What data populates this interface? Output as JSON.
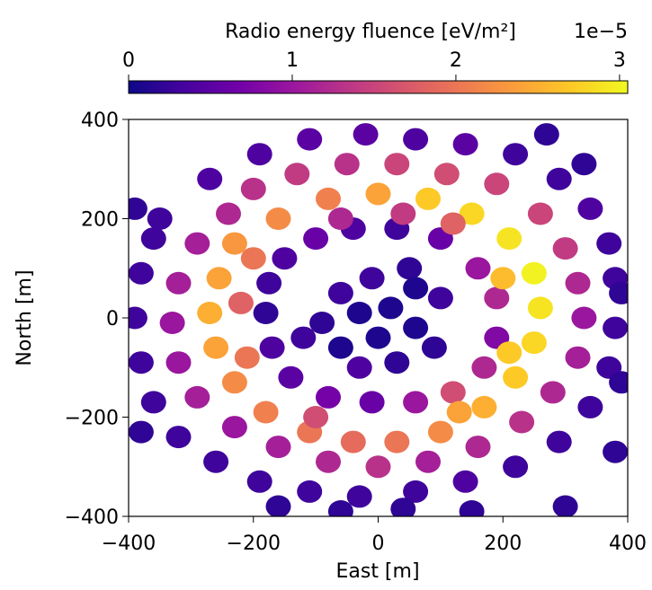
{
  "chart_data": {
    "type": "scatter",
    "title": "",
    "xlabel": "East [m]",
    "ylabel": "North [m]",
    "xlim": [
      -400,
      400
    ],
    "ylim": [
      -400,
      400
    ],
    "xticks": [
      -400,
      -200,
      0,
      200,
      400
    ],
    "yticks": [
      -400,
      -200,
      0,
      200,
      400
    ],
    "xtick_labels": [
      "−400",
      "−200",
      "0",
      "200",
      "400"
    ],
    "ytick_labels": [
      "−400",
      "−200",
      "0",
      "200",
      "400"
    ],
    "grid": false,
    "colormap": "plasma",
    "colorbar": {
      "label": "Radio energy fluence [eV/m²]",
      "offset_text": "1e−5",
      "placement": "top",
      "range": [
        0,
        3.05
      ],
      "ticks": [
        0,
        1,
        2,
        3
      ],
      "tick_labels": [
        "0",
        "1",
        "2",
        "3"
      ],
      "stops": [
        "#0d0887",
        "#46039f",
        "#7201a8",
        "#9c179e",
        "#bd3786",
        "#d8576b",
        "#ed7953",
        "#fb9f3a",
        "#fdca26",
        "#f0f921"
      ]
    },
    "points": [
      {
        "x": -10,
        "y": 80,
        "v": 0.3
      },
      {
        "x": 50,
        "y": 100,
        "v": 0.2
      },
      {
        "x": -60,
        "y": 50,
        "v": 0.3
      },
      {
        "x": -90,
        "y": -10,
        "v": 0.2
      },
      {
        "x": -60,
        "y": -60,
        "v": 0.1
      },
      {
        "x": 0,
        "y": -40,
        "v": 0.1
      },
      {
        "x": 20,
        "y": 20,
        "v": 0.1
      },
      {
        "x": 60,
        "y": -20,
        "v": 0.1
      },
      {
        "x": 60,
        "y": 60,
        "v": 0.1
      },
      {
        "x": 100,
        "y": 40,
        "v": 0.3
      },
      {
        "x": 90,
        "y": -60,
        "v": 0.2
      },
      {
        "x": 30,
        "y": -90,
        "v": 0.2
      },
      {
        "x": -30,
        "y": -100,
        "v": 0.4
      },
      {
        "x": -30,
        "y": 10,
        "v": 0.1
      },
      {
        "x": -150,
        "y": 120,
        "v": 0.4
      },
      {
        "x": -100,
        "y": 160,
        "v": 0.6
      },
      {
        "x": -40,
        "y": 180,
        "v": 0.4
      },
      {
        "x": 30,
        "y": 180,
        "v": 0.3
      },
      {
        "x": 100,
        "y": 160,
        "v": 0.6
      },
      {
        "x": 160,
        "y": 100,
        "v": 1.0
      },
      {
        "x": 190,
        "y": 40,
        "v": 1.2
      },
      {
        "x": 190,
        "y": -40,
        "v": 0.8
      },
      {
        "x": 170,
        "y": -100,
        "v": 1.2
      },
      {
        "x": 120,
        "y": -150,
        "v": 1.6
      },
      {
        "x": 60,
        "y": -170,
        "v": 1.0
      },
      {
        "x": -10,
        "y": -170,
        "v": 0.6
      },
      {
        "x": -80,
        "y": -160,
        "v": 0.7
      },
      {
        "x": -140,
        "y": -120,
        "v": 0.5
      },
      {
        "x": -170,
        "y": -60,
        "v": 0.4
      },
      {
        "x": -180,
        "y": 10,
        "v": 0.2
      },
      {
        "x": -175,
        "y": 70,
        "v": 0.3
      },
      {
        "x": -120,
        "y": -40,
        "v": 0.3
      },
      {
        "x": -230,
        "y": 150,
        "v": 2.3
      },
      {
        "x": -160,
        "y": 200,
        "v": 2.2
      },
      {
        "x": -80,
        "y": 240,
        "v": 2.1
      },
      {
        "x": 0,
        "y": 250,
        "v": 2.4
      },
      {
        "x": 80,
        "y": 240,
        "v": 2.7
      },
      {
        "x": 150,
        "y": 210,
        "v": 2.8
      },
      {
        "x": 210,
        "y": 160,
        "v": 2.9
      },
      {
        "x": 250,
        "y": 90,
        "v": 3.0
      },
      {
        "x": 260,
        "y": 20,
        "v": 2.9
      },
      {
        "x": 250,
        "y": -50,
        "v": 2.8
      },
      {
        "x": 220,
        "y": -120,
        "v": 2.7
      },
      {
        "x": 170,
        "y": -180,
        "v": 2.5
      },
      {
        "x": 100,
        "y": -230,
        "v": 2.2
      },
      {
        "x": 30,
        "y": -250,
        "v": 2.0
      },
      {
        "x": -40,
        "y": -250,
        "v": 1.9
      },
      {
        "x": -110,
        "y": -230,
        "v": 2.0
      },
      {
        "x": -180,
        "y": -190,
        "v": 2.1
      },
      {
        "x": -230,
        "y": -130,
        "v": 2.2
      },
      {
        "x": -260,
        "y": -60,
        "v": 2.4
      },
      {
        "x": -270,
        "y": 10,
        "v": 2.5
      },
      {
        "x": -255,
        "y": 80,
        "v": 2.4
      },
      {
        "x": -200,
        "y": 120,
        "v": 2.0
      },
      {
        "x": -60,
        "y": 200,
        "v": 1.2
      },
      {
        "x": 40,
        "y": 210,
        "v": 1.4
      },
      {
        "x": 120,
        "y": 190,
        "v": 1.8
      },
      {
        "x": 200,
        "y": 80,
        "v": 2.6
      },
      {
        "x": 210,
        "y": -70,
        "v": 2.7
      },
      {
        "x": 130,
        "y": -190,
        "v": 2.4
      },
      {
        "x": -100,
        "y": -200,
        "v": 1.6
      },
      {
        "x": -210,
        "y": -80,
        "v": 2.0
      },
      {
        "x": -220,
        "y": 30,
        "v": 1.8
      },
      {
        "x": -200,
        "y": 260,
        "v": 1.3
      },
      {
        "x": -130,
        "y": 290,
        "v": 1.4
      },
      {
        "x": -50,
        "y": 310,
        "v": 1.3
      },
      {
        "x": 30,
        "y": 310,
        "v": 1.5
      },
      {
        "x": 110,
        "y": 290,
        "v": 1.6
      },
      {
        "x": 190,
        "y": 270,
        "v": 1.5
      },
      {
        "x": 260,
        "y": 210,
        "v": 1.5
      },
      {
        "x": 300,
        "y": 140,
        "v": 1.4
      },
      {
        "x": 320,
        "y": 70,
        "v": 1.2
      },
      {
        "x": 330,
        "y": 0,
        "v": 1.0
      },
      {
        "x": 320,
        "y": -80,
        "v": 1.1
      },
      {
        "x": 280,
        "y": -150,
        "v": 1.2
      },
      {
        "x": 230,
        "y": -210,
        "v": 1.3
      },
      {
        "x": 160,
        "y": -260,
        "v": 1.2
      },
      {
        "x": 80,
        "y": -290,
        "v": 1.1
      },
      {
        "x": 0,
        "y": -300,
        "v": 1.3
      },
      {
        "x": -80,
        "y": -290,
        "v": 1.2
      },
      {
        "x": -160,
        "y": -260,
        "v": 1.1
      },
      {
        "x": -230,
        "y": -220,
        "v": 1.0
      },
      {
        "x": -290,
        "y": -160,
        "v": 1.1
      },
      {
        "x": -320,
        "y": -90,
        "v": 1.0
      },
      {
        "x": -330,
        "y": -10,
        "v": 1.0
      },
      {
        "x": -320,
        "y": 70,
        "v": 1.1
      },
      {
        "x": -290,
        "y": 150,
        "v": 1.1
      },
      {
        "x": -240,
        "y": 210,
        "v": 1.2
      },
      {
        "x": -350,
        "y": 200,
        "v": 0.3
      },
      {
        "x": -270,
        "y": 280,
        "v": 0.4
      },
      {
        "x": -190,
        "y": 330,
        "v": 0.4
      },
      {
        "x": -110,
        "y": 360,
        "v": 0.5
      },
      {
        "x": -20,
        "y": 370,
        "v": 0.5
      },
      {
        "x": 60,
        "y": 360,
        "v": 0.4
      },
      {
        "x": 140,
        "y": 350,
        "v": 0.5
      },
      {
        "x": 220,
        "y": 330,
        "v": 0.3
      },
      {
        "x": 290,
        "y": 280,
        "v": 0.3
      },
      {
        "x": 340,
        "y": 220,
        "v": 0.4
      },
      {
        "x": 370,
        "y": 150,
        "v": 0.3
      },
      {
        "x": 380,
        "y": 80,
        "v": 0.3
      },
      {
        "x": 380,
        "y": -20,
        "v": 0.3
      },
      {
        "x": 370,
        "y": -100,
        "v": 0.3
      },
      {
        "x": 340,
        "y": -180,
        "v": 0.3
      },
      {
        "x": 290,
        "y": -250,
        "v": 0.3
      },
      {
        "x": 220,
        "y": -300,
        "v": 0.3
      },
      {
        "x": 140,
        "y": -330,
        "v": 0.4
      },
      {
        "x": 60,
        "y": -350,
        "v": 0.3
      },
      {
        "x": -30,
        "y": -360,
        "v": 0.3
      },
      {
        "x": -110,
        "y": -350,
        "v": 0.3
      },
      {
        "x": -190,
        "y": -330,
        "v": 0.3
      },
      {
        "x": -260,
        "y": -290,
        "v": 0.3
      },
      {
        "x": -320,
        "y": -240,
        "v": 0.3
      },
      {
        "x": -360,
        "y": -170,
        "v": 0.3
      },
      {
        "x": -380,
        "y": -90,
        "v": 0.3
      },
      {
        "x": -390,
        "y": 0,
        "v": 0.3
      },
      {
        "x": -380,
        "y": 90,
        "v": 0.3
      },
      {
        "x": -360,
        "y": 160,
        "v": 0.3
      },
      {
        "x": -160,
        "y": -380,
        "v": 0.2
      },
      {
        "x": -60,
        "y": -390,
        "v": 0.2
      },
      {
        "x": 40,
        "y": -385,
        "v": 0.2
      },
      {
        "x": 150,
        "y": -390,
        "v": 0.2
      },
      {
        "x": 270,
        "y": 370,
        "v": 0.2
      },
      {
        "x": 330,
        "y": 310,
        "v": 0.2
      },
      {
        "x": 390,
        "y": 50,
        "v": 0.2
      },
      {
        "x": -390,
        "y": 220,
        "v": 0.2
      },
      {
        "x": -380,
        "y": -230,
        "v": 0.2
      },
      {
        "x": 390,
        "y": -130,
        "v": 0.2
      },
      {
        "x": 380,
        "y": -270,
        "v": 0.2
      },
      {
        "x": 300,
        "y": -380,
        "v": 0.2
      }
    ]
  }
}
